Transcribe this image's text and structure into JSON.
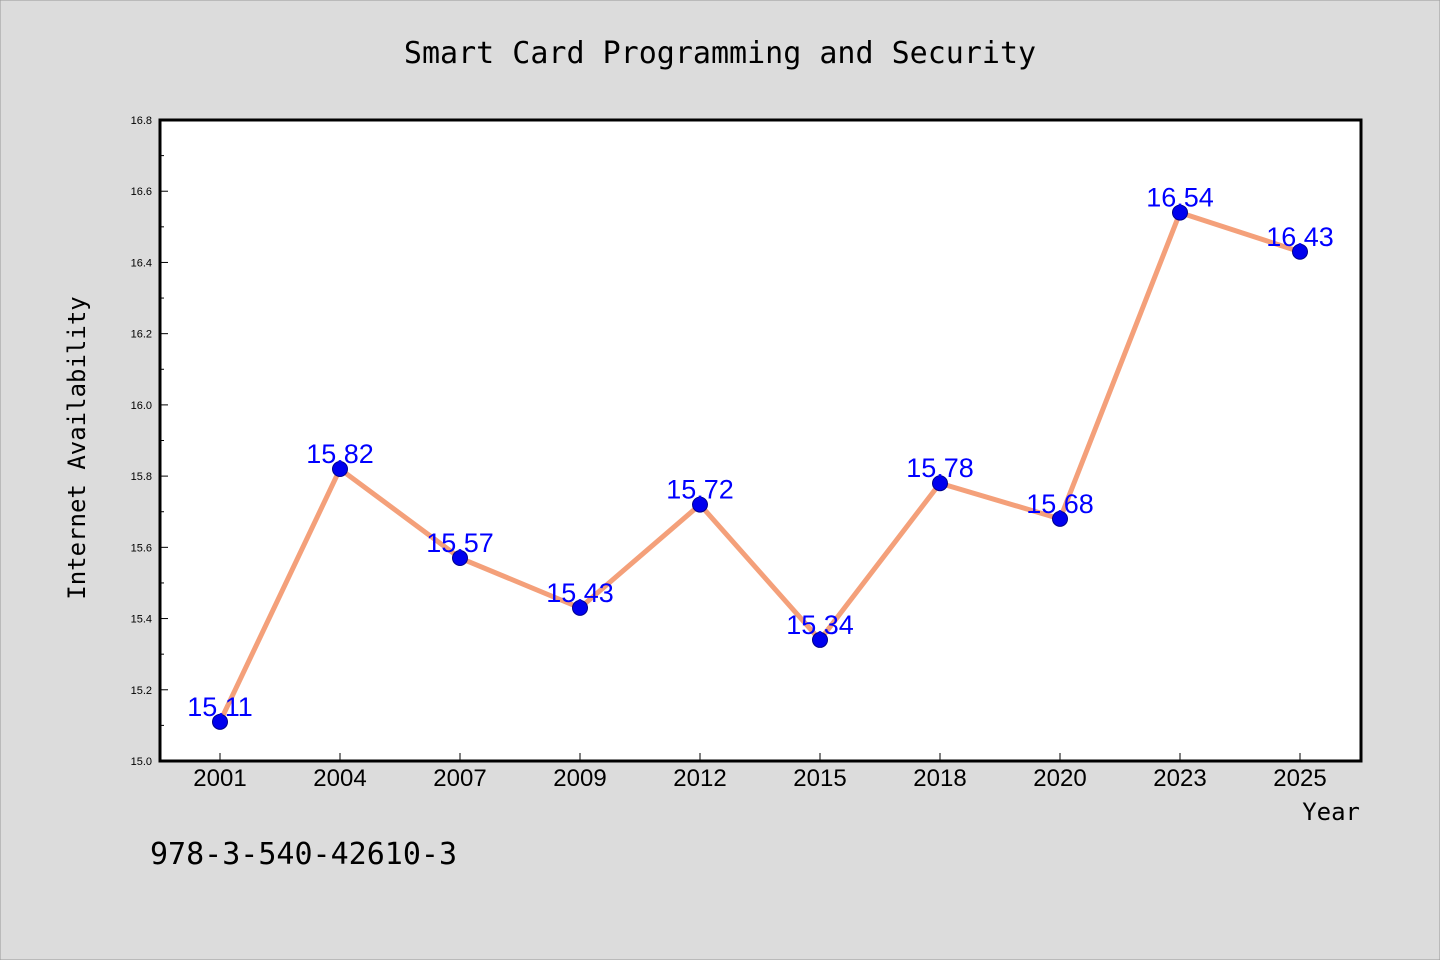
{
  "chart_data": {
    "type": "line",
    "title": "Smart Card Programming and Security",
    "xlabel": "Year",
    "ylabel": "Internet Availability",
    "categories": [
      "2001",
      "2004",
      "2007",
      "2009",
      "2012",
      "2015",
      "2018",
      "2020",
      "2023",
      "2025"
    ],
    "values": [
      15.11,
      15.82,
      15.57,
      15.43,
      15.72,
      15.34,
      15.78,
      15.68,
      16.54,
      16.43
    ],
    "ylim": [
      15.0,
      16.8
    ],
    "yticks": [
      "15.0",
      "15.2",
      "15.4",
      "15.6",
      "15.8",
      "16.0",
      "16.2",
      "16.4",
      "16.6",
      "16.8"
    ],
    "grid": false,
    "legend": "none",
    "line_color": "#f4a07a",
    "marker_color": "#0000ee",
    "label_color": "#0000ff"
  },
  "annotation": "978-3-540-42610-3"
}
